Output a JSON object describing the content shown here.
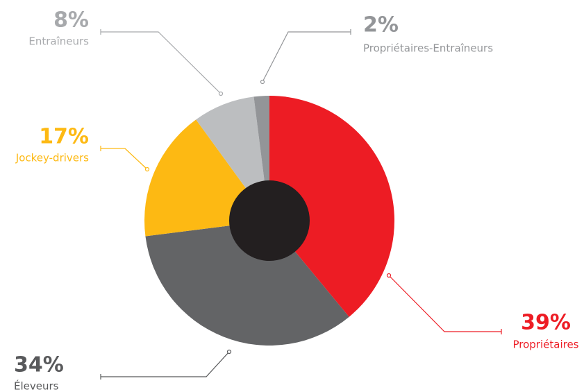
{
  "chart_data": {
    "type": "pie",
    "categories": [
      "Propriétaires",
      "Éleveurs",
      "Jockey-drivers",
      "Entraîneurs",
      "Propriétaires-Entraîneurs"
    ],
    "values": [
      39,
      34,
      17,
      8,
      2
    ],
    "value_labels": [
      "39%",
      "34%",
      "17%",
      "8%",
      "2%"
    ],
    "colors": [
      "#ed1c24",
      "#636466",
      "#fdb913",
      "#bcbec0",
      "#939598"
    ],
    "label_colors": [
      "#ed1c24",
      "#58595b",
      "#fdb913",
      "#a7a9ac",
      "#939598"
    ]
  }
}
